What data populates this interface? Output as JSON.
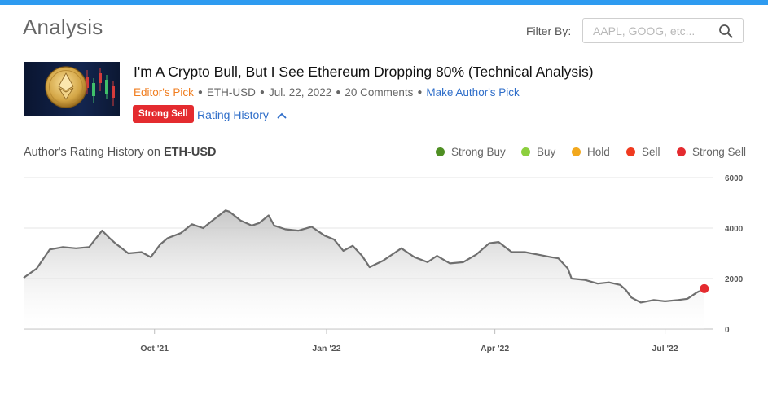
{
  "header": {
    "title": "Analysis",
    "filter_label": "Filter By:",
    "filter_placeholder": "AAPL, GOOG, etc...",
    "filter_value": ""
  },
  "article": {
    "thumbnail_icon": "ethereum-coin-icon",
    "title": "I'm A Crypto Bull, But I See Ethereum Dropping 80% (Technical Analysis)",
    "editors_pick": "Editor's Pick",
    "ticker": "ETH-USD",
    "date": "Jul. 22, 2022",
    "comments": "20 Comments",
    "make_authors_pick": "Make Author's Pick",
    "rating_badge": "Strong Sell",
    "rating_history_label": "Rating History"
  },
  "rating_chart": {
    "heading_prefix": "Author's Rating History on",
    "heading_ticker": "ETH-USD",
    "legend": [
      {
        "label": "Strong Buy",
        "color": "#4f8f23"
      },
      {
        "label": "Buy",
        "color": "#8ccf3e"
      },
      {
        "label": "Hold",
        "color": "#f2a81d"
      },
      {
        "label": "Sell",
        "color": "#f03a1f"
      },
      {
        "label": "Strong Sell",
        "color": "#e42b2f"
      }
    ]
  },
  "chart_data": {
    "type": "area",
    "title": "",
    "xlabel": "",
    "ylabel": "",
    "x_ticks": [
      "Oct '21",
      "Jan '22",
      "Apr '22",
      "Jul '22"
    ],
    "x_tick_dates": [
      "2021-10-01",
      "2022-01-01",
      "2022-04-01",
      "2022-07-01"
    ],
    "x_range": [
      "2021-07-23",
      "2022-07-26"
    ],
    "ylim": [
      0,
      6000
    ],
    "y_ticks": [
      0,
      2000,
      4000,
      6000
    ],
    "grid": true,
    "series": [
      {
        "x": [
          "2021-07-23",
          "2021-07-30",
          "2021-08-06",
          "2021-08-13",
          "2021-08-20",
          "2021-08-27",
          "2021-09-03",
          "2021-09-07",
          "2021-09-10",
          "2021-09-17",
          "2021-09-24",
          "2021-09-29",
          "2021-10-04",
          "2021-10-08",
          "2021-10-15",
          "2021-10-21",
          "2021-10-27",
          "2021-11-01",
          "2021-11-08",
          "2021-11-10",
          "2021-11-16",
          "2021-11-22",
          "2021-11-26",
          "2021-12-01",
          "2021-12-04",
          "2021-12-10",
          "2021-12-17",
          "2021-12-24",
          "2021-12-31",
          "2022-01-05",
          "2022-01-10",
          "2022-01-15",
          "2022-01-20",
          "2022-01-24",
          "2022-01-31",
          "2022-02-07",
          "2022-02-10",
          "2022-02-17",
          "2022-02-24",
          "2022-03-01",
          "2022-03-08",
          "2022-03-15",
          "2022-03-22",
          "2022-03-29",
          "2022-04-03",
          "2022-04-10",
          "2022-04-17",
          "2022-04-24",
          "2022-05-01",
          "2022-05-05",
          "2022-05-10",
          "2022-05-12",
          "2022-05-19",
          "2022-05-26",
          "2022-06-01",
          "2022-06-07",
          "2022-06-10",
          "2022-06-13",
          "2022-06-18",
          "2022-06-25",
          "2022-07-01",
          "2022-07-08",
          "2022-07-13",
          "2022-07-18",
          "2022-07-22"
        ],
        "values": [
          2030,
          2400,
          3150,
          3250,
          3200,
          3250,
          3900,
          3600,
          3400,
          3000,
          3050,
          2850,
          3350,
          3600,
          3800,
          4150,
          4000,
          4300,
          4700,
          4650,
          4300,
          4100,
          4200,
          4500,
          4100,
          3950,
          3900,
          4050,
          3700,
          3550,
          3100,
          3300,
          2900,
          2450,
          2700,
          3050,
          3200,
          2850,
          2650,
          2900,
          2600,
          2650,
          2950,
          3400,
          3450,
          3050,
          3050,
          2950,
          2850,
          2800,
          2400,
          2000,
          1950,
          1800,
          1850,
          1750,
          1550,
          1250,
          1050,
          1150,
          1100,
          1150,
          1200,
          1450,
          1600
        ]
      }
    ],
    "markers": [
      {
        "x": "2022-07-22",
        "y": 1600,
        "rating": "Strong Sell",
        "color": "#e42b2f"
      }
    ]
  }
}
